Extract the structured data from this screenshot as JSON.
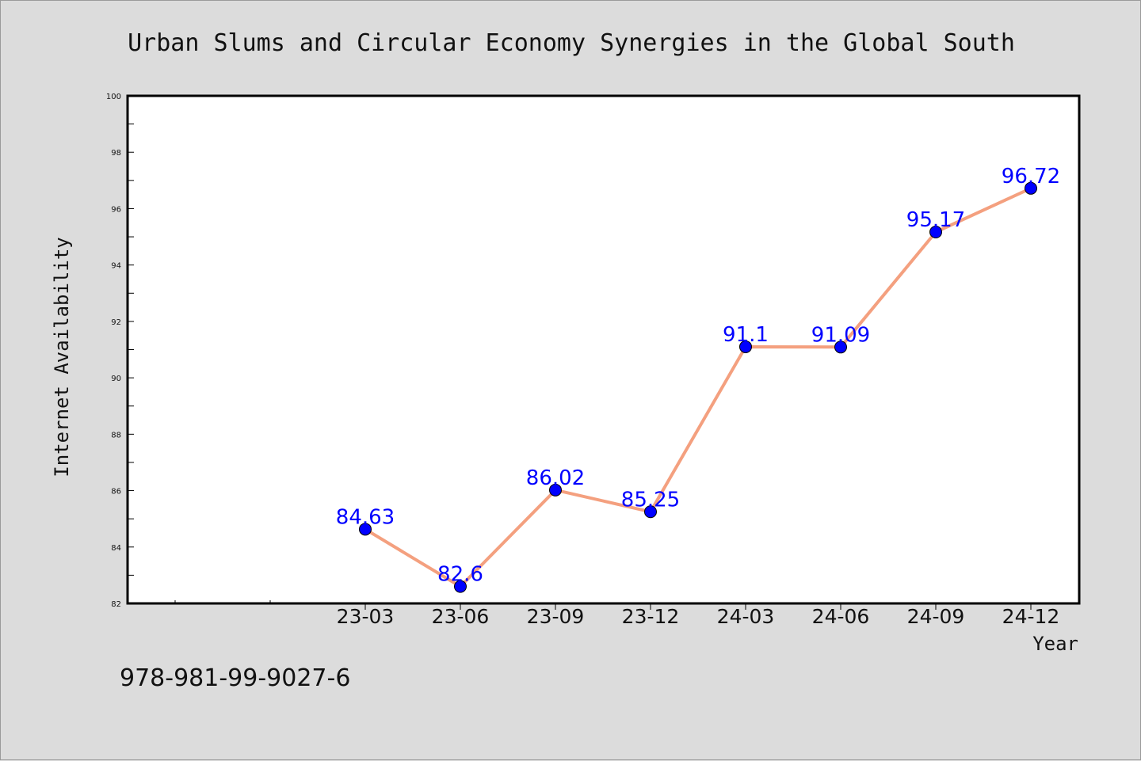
{
  "chart_data": {
    "type": "line",
    "title": "Urban Slums and Circular Economy Synergies in the Global South",
    "xlabel": "Year",
    "ylabel": "Internet Availability",
    "categories": [
      "23-03",
      "23-06",
      "23-09",
      "23-12",
      "24-03",
      "24-06",
      "24-09",
      "24-12"
    ],
    "values": [
      84.63,
      82.6,
      86.02,
      85.25,
      91.1,
      91.09,
      95.17,
      96.72
    ],
    "data_labels": [
      "84.63",
      "82.6",
      "86.02",
      "85.25",
      "91.1",
      "91.09",
      "95.17",
      "96.72"
    ],
    "ylim": [
      82,
      100
    ],
    "yticks": [
      82,
      84,
      86,
      88,
      90,
      92,
      94,
      96,
      98,
      100
    ],
    "grid": false,
    "line_color": "#f4a07f",
    "marker_color": "#0000ff",
    "label_color": "#0000ff"
  },
  "footer": {
    "isbn": "978-981-99-9027-6"
  }
}
